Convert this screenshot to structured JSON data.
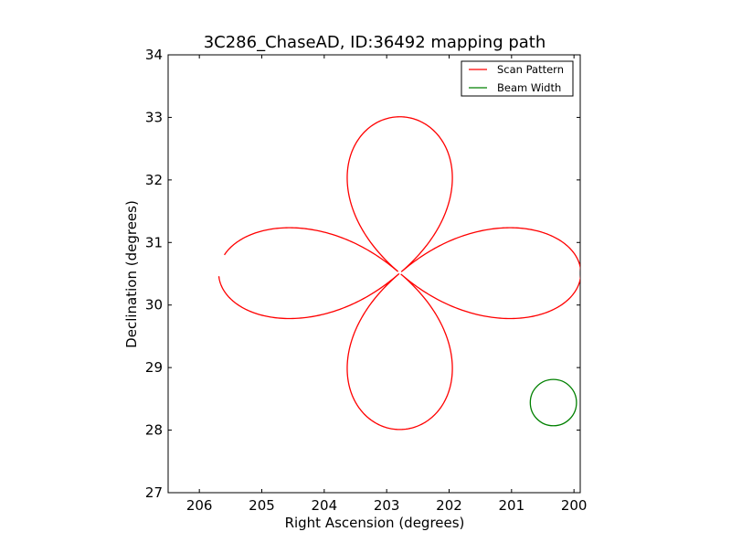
{
  "chart_data": {
    "type": "line",
    "title": "3C286_ChaseAD, ID:36492 mapping path",
    "xlabel": "Right Ascension (degrees)",
    "ylabel": "Declination (degrees)",
    "xlim": [
      206.5,
      199.9
    ],
    "ylim": [
      27,
      34
    ],
    "x_inverted": true,
    "grid": false,
    "legend_position": "top-right",
    "x_ticks": [
      206,
      205,
      204,
      203,
      202,
      201,
      200
    ],
    "y_ticks": [
      27,
      28,
      29,
      30,
      31,
      32,
      33,
      34
    ],
    "series": [
      {
        "name": "Scan Pattern",
        "color": "#ff0000",
        "center": [
          202.79,
          30.51
        ],
        "peak_amplitude_ra": 2.9,
        "peak_amplitude_dec": 2.5,
        "lobes": 4,
        "start_ra": 205.68,
        "start_dec": 30.5,
        "end_ra": 205.62,
        "end_dec": 30.32
      },
      {
        "name": "Beam Width",
        "color": "#008000",
        "center": [
          200.33,
          28.44
        ],
        "radius_ra": 0.37,
        "radius_dec": 0.37
      }
    ]
  }
}
